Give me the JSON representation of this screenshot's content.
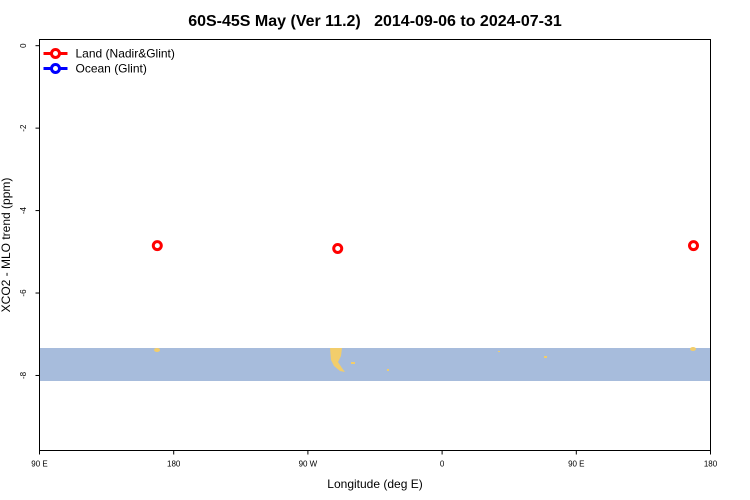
{
  "chart_data": {
    "type": "scatter",
    "title": "60S-45S May (Ver 11.2)   2014-09-06 to 2024-07-31",
    "x_label": "Longitude (deg E)",
    "y_label": "XCO2 - MLO trend (ppm)",
    "xlim": [
      90,
      540
    ],
    "ylim": [
      -9.82,
      0.15
    ],
    "xticks": [
      {
        "value": 90,
        "label": "90 E"
      },
      {
        "value": 180,
        "label": "180"
      },
      {
        "value": 270,
        "label": "90 W"
      },
      {
        "value": 360,
        "label": "0"
      },
      {
        "value": 450,
        "label": "90 E"
      },
      {
        "value": 540,
        "label": "180"
      }
    ],
    "yticks": [
      0,
      -2,
      -4,
      -6,
      -8
    ],
    "legend_position": "top-left",
    "series": [
      {
        "name": "Land (Nadir&Glint)",
        "color": "#ff0000",
        "x": [
          169,
          290,
          528.6
        ],
        "values": [
          -4.85,
          -4.92,
          -4.85
        ]
      },
      {
        "name": "Ocean (Glint)",
        "color": "#0000ff",
        "x": [],
        "values": []
      }
    ]
  }
}
